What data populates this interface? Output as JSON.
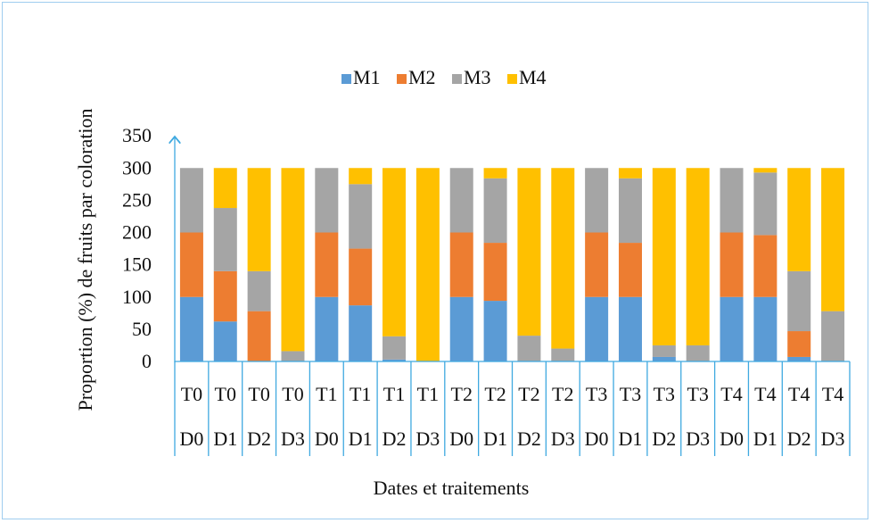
{
  "chart_data": {
    "type": "bar",
    "stacked": true,
    "title": "",
    "xlabel": "Dates et traitements",
    "ylabel": "Proportion (%) de fruits par coloration",
    "ylim": [
      0,
      350
    ],
    "yticks": [
      0,
      50,
      100,
      150,
      200,
      250,
      300,
      350
    ],
    "grid": false,
    "legend_position": "top-center",
    "categories": [
      [
        "T0",
        "D0"
      ],
      [
        "T0",
        "D1"
      ],
      [
        "T0",
        "D2"
      ],
      [
        "T0",
        "D3"
      ],
      [
        "T1",
        "D0"
      ],
      [
        "T1",
        "D1"
      ],
      [
        "T1",
        "D2"
      ],
      [
        "T1",
        "D3"
      ],
      [
        "T2",
        "D0"
      ],
      [
        "T2",
        "D1"
      ],
      [
        "T2",
        "D2"
      ],
      [
        "T2",
        "D3"
      ],
      [
        "T3",
        "D0"
      ],
      [
        "T3",
        "D1"
      ],
      [
        "T3",
        "D2"
      ],
      [
        "T3",
        "D3"
      ],
      [
        "T4",
        "D0"
      ],
      [
        "T4",
        "D1"
      ],
      [
        "T4",
        "D2"
      ],
      [
        "T4",
        "D3"
      ]
    ],
    "series": [
      {
        "name": "M1",
        "color": "#5b9bd5",
        "values": [
          100,
          62,
          0,
          0,
          100,
          87,
          3,
          0,
          100,
          94,
          0,
          0,
          100,
          100,
          7,
          0,
          100,
          100,
          7,
          0
        ]
      },
      {
        "name": "M2",
        "color": "#ed7d31",
        "values": [
          100,
          78,
          78,
          0,
          100,
          88,
          0,
          0,
          100,
          90,
          0,
          0,
          100,
          84,
          0,
          0,
          100,
          96,
          40,
          0
        ]
      },
      {
        "name": "M3",
        "color": "#a5a5a5",
        "values": [
          100,
          98,
          62,
          16,
          100,
          100,
          36,
          0,
          100,
          100,
          40,
          20,
          100,
          100,
          18,
          25,
          100,
          97,
          93,
          78
        ]
      },
      {
        "name": "M4",
        "color": "#ffc000",
        "values": [
          0,
          62,
          160,
          284,
          0,
          25,
          261,
          300,
          0,
          16,
          260,
          280,
          0,
          16,
          275,
          275,
          0,
          7,
          160,
          222
        ]
      }
    ]
  }
}
